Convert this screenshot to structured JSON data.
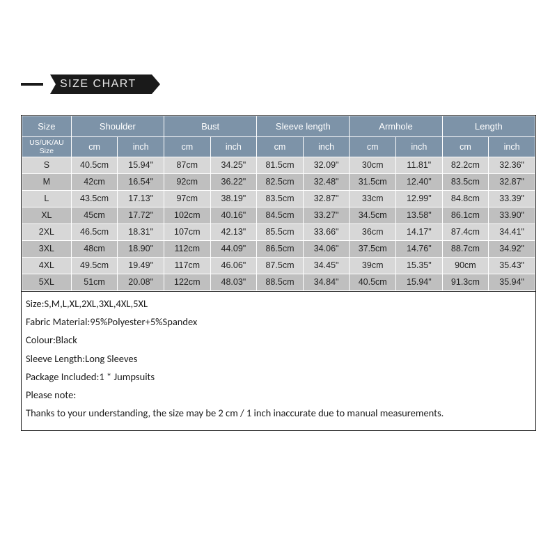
{
  "banner": {
    "title": "SIZE CHART"
  },
  "table": {
    "type": "table",
    "header_bg": "#7d93a8",
    "header_color": "#ffffff",
    "row_colors": [
      "#d7d7d7",
      "#bfbfbf"
    ],
    "border_color": "#ffffff",
    "top_headers": [
      "Size",
      "Shoulder",
      "Bust",
      "Sleeve length",
      "Armhole",
      "Length"
    ],
    "size_label": "US/UK/AU Size",
    "unit_cm": "cm",
    "unit_inch": "inch",
    "rows": [
      {
        "size": "S",
        "cells": [
          "40.5cm",
          "15.94\"",
          "87cm",
          "34.25\"",
          "81.5cm",
          "32.09\"",
          "30cm",
          "11.81\"",
          "82.2cm",
          "32.36\""
        ]
      },
      {
        "size": "M",
        "cells": [
          "42cm",
          "16.54\"",
          "92cm",
          "36.22\"",
          "82.5cm",
          "32.48\"",
          "31.5cm",
          "12.40\"",
          "83.5cm",
          "32.87\""
        ]
      },
      {
        "size": "L",
        "cells": [
          "43.5cm",
          "17.13\"",
          "97cm",
          "38.19\"",
          "83.5cm",
          "32.87\"",
          "33cm",
          "12.99\"",
          "84.8cm",
          "33.39\""
        ]
      },
      {
        "size": "XL",
        "cells": [
          "45cm",
          "17.72\"",
          "102cm",
          "40.16\"",
          "84.5cm",
          "33.27\"",
          "34.5cm",
          "13.58\"",
          "86.1cm",
          "33.90\""
        ]
      },
      {
        "size": "2XL",
        "cells": [
          "46.5cm",
          "18.31\"",
          "107cm",
          "42.13\"",
          "85.5cm",
          "33.66\"",
          "36cm",
          "14.17\"",
          "87.4cm",
          "34.41\""
        ]
      },
      {
        "size": "3XL",
        "cells": [
          "48cm",
          "18.90\"",
          "112cm",
          "44.09\"",
          "86.5cm",
          "34.06\"",
          "37.5cm",
          "14.76\"",
          "88.7cm",
          "34.92\""
        ]
      },
      {
        "size": "4XL",
        "cells": [
          "49.5cm",
          "19.49\"",
          "117cm",
          "46.06\"",
          "87.5cm",
          "34.45\"",
          "39cm",
          "15.35\"",
          "90cm",
          "35.43\""
        ]
      },
      {
        "size": "5XL",
        "cells": [
          "51cm",
          "20.08\"",
          "122cm",
          "48.03\"",
          "88.5cm",
          "34.84\"",
          "40.5cm",
          "15.94\"",
          "91.3cm",
          "35.94\""
        ]
      }
    ]
  },
  "info": {
    "lines": [
      "Size:S,M,L,XL,2XL,3XL,4XL,5XL",
      "Fabric Material:95%Polyester+5%Spandex",
      "Colour:Black",
      "Sleeve Length:Long Sleeves",
      "Package Included:1 * Jumpsuits",
      "Please note:",
      "Thanks to your understanding, the size may be 2 cm / 1 inch inaccurate due to manual measurements."
    ]
  }
}
